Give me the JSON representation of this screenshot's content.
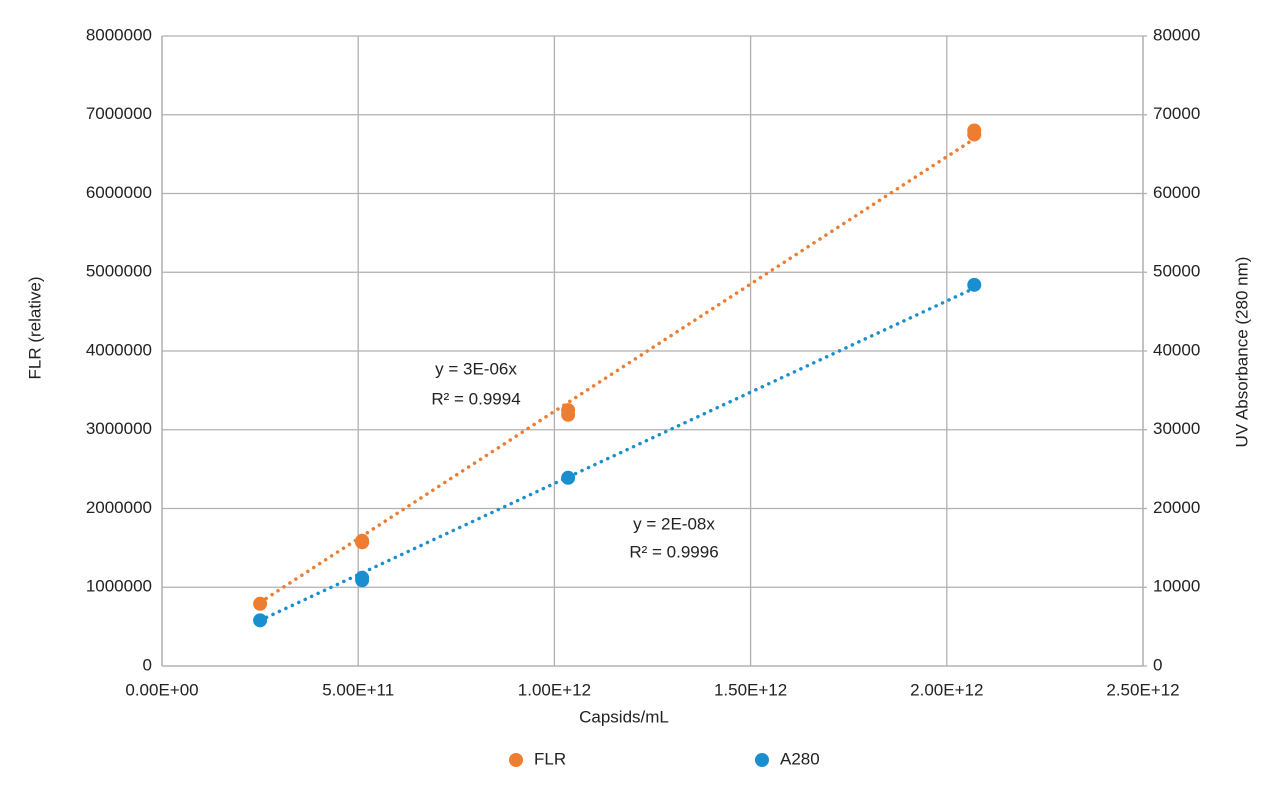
{
  "chart_data": {
    "type": "scatter",
    "x_label": "Capsids/mL",
    "y_label": "FLR (relative)",
    "y2_label": "UV Absorbance (280 nm)",
    "xlim": [
      0,
      2500000000000
    ],
    "xticks": [
      {
        "value": 0,
        "label": "0.00E+00"
      },
      {
        "value": 500000000000,
        "label": "5.00E+11"
      },
      {
        "value": 1000000000000,
        "label": "1.00E+12"
      },
      {
        "value": 1500000000000,
        "label": "1.50E+12"
      },
      {
        "value": 2000000000000,
        "label": "2.00E+12"
      },
      {
        "value": 2500000000000,
        "label": "2.50E+12"
      }
    ],
    "ylim": [
      0,
      8000000
    ],
    "yticks": [
      0,
      1000000,
      2000000,
      3000000,
      4000000,
      5000000,
      6000000,
      7000000,
      8000000
    ],
    "y2lim": [
      0,
      80000
    ],
    "y2ticks": [
      0,
      10000,
      20000,
      30000,
      40000,
      50000,
      60000,
      70000,
      80000
    ],
    "grid": true,
    "legend": "bottom",
    "series": [
      {
        "name": "FLR",
        "color": "#ed7d31",
        "x": [
          250000000000,
          510000000000,
          510000000000,
          1035000000000,
          1035000000000,
          2070000000000,
          2070000000000
        ],
        "values": [
          790000,
          1590000,
          1570000,
          3250000,
          3190000,
          6800000,
          6750000
        ],
        "trendline": {
          "equation": "y = 3E-06x",
          "r2": "R² = 0.9994"
        }
      },
      {
        "name": "A280",
        "color": "#1a8fcf",
        "axis": "y2",
        "x": [
          250000000000,
          510000000000,
          510000000000,
          1035000000000,
          2070000000000
        ],
        "values": [
          5800,
          11200,
          10900,
          23900,
          48400
        ],
        "trendline": {
          "equation": "y = 2E-08x",
          "r2": "R² = 0.9996"
        }
      }
    ]
  }
}
